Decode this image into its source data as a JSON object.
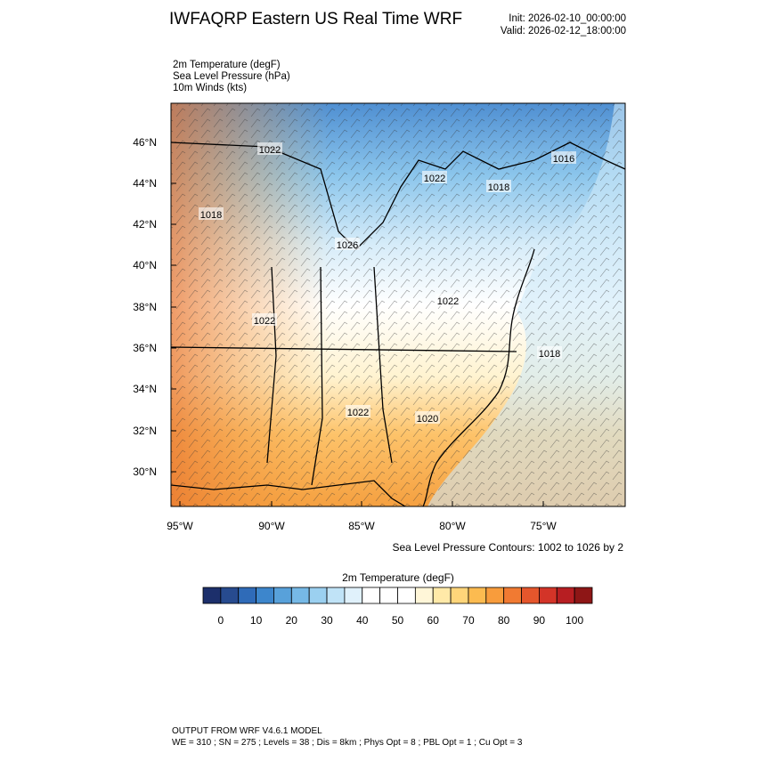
{
  "header": {
    "title": "IWFAQRP Eastern US Real Time WRF",
    "init": "Init: 2026-02-10_00:00:00",
    "valid": "Valid: 2026-02-12_18:00:00"
  },
  "fields": [
    "2m Temperature   (degF)",
    "Sea Level Pressure   (hPa)",
    "10m Winds   (kts)"
  ],
  "map": {
    "lat_labels": [
      "46°N",
      "44°N",
      "42°N",
      "40°N",
      "38°N",
      "36°N",
      "34°N",
      "32°N",
      "30°N"
    ],
    "lon_labels": [
      "95°W",
      "90°W",
      "85°W",
      "80°W",
      "75°W"
    ],
    "contour_labels": [
      "1022",
      "1022",
      "1018",
      "1016",
      "1018",
      "1026",
      "1022",
      "1022",
      "1018",
      "1022",
      "1020"
    ],
    "contour_note": "Sea Level Pressure Contours: 1002 to 1026 by 2"
  },
  "colorbar": {
    "title": "2m Temperature  (degF)",
    "ticks": [
      0,
      10,
      20,
      30,
      40,
      50,
      60,
      70,
      80,
      90,
      100
    ],
    "colors": [
      "#1c2f6b",
      "#274b8f",
      "#2f6bb8",
      "#3d86cc",
      "#58a1da",
      "#76b9e6",
      "#9bd0f0",
      "#c0e3f7",
      "#e0f1fb",
      "#ffffff",
      "#ffffff",
      "#ffffff",
      "#fff6d8",
      "#ffe9a8",
      "#ffd57a",
      "#fcbb50",
      "#f89c3c",
      "#f17a32",
      "#e5562c",
      "#d33428",
      "#b71e22",
      "#8e1616"
    ]
  },
  "footer": {
    "line1": "OUTPUT FROM WRF V4.6.1 MODEL",
    "line2": "WE = 310 ; SN = 275 ; Levels = 38 ; Dis = 8km ; Phys Opt = 8 ; PBL Opt = 1 ; Cu Opt = 3"
  }
}
